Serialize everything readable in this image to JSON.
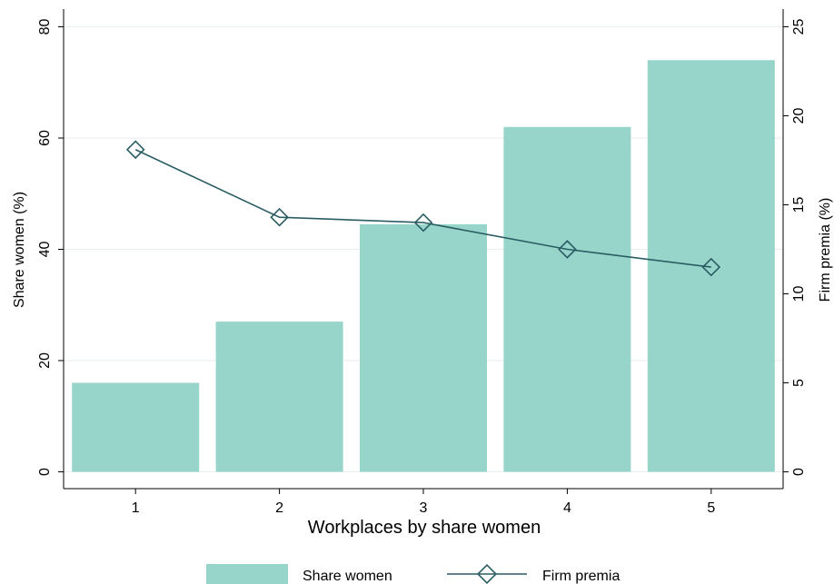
{
  "chart_data": {
    "type": "bar",
    "title": "",
    "xlabel": "Workplaces by share women",
    "ylabel": "Share women (%)",
    "y2label": "Firm premia (%)",
    "categories": [
      "1",
      "2",
      "3",
      "4",
      "5"
    ],
    "ylim": [
      0,
      80
    ],
    "y2lim": [
      0,
      25
    ],
    "yticks": [
      "0",
      "20",
      "40",
      "60",
      "80"
    ],
    "y2ticks": [
      "0",
      "5",
      "10",
      "15",
      "20",
      "25"
    ],
    "grid": true,
    "legend_position": "bottom",
    "series": [
      {
        "name": "Share women",
        "type": "bar",
        "axis": "left",
        "color": "#97d4ca",
        "values": [
          16,
          27,
          44.5,
          62,
          74
        ]
      },
      {
        "name": "Firm premia",
        "type": "line",
        "axis": "right",
        "marker": "diamond",
        "color": "#2a5d63",
        "values": [
          18.1,
          14.3,
          14.0,
          12.5,
          11.5
        ]
      }
    ]
  }
}
